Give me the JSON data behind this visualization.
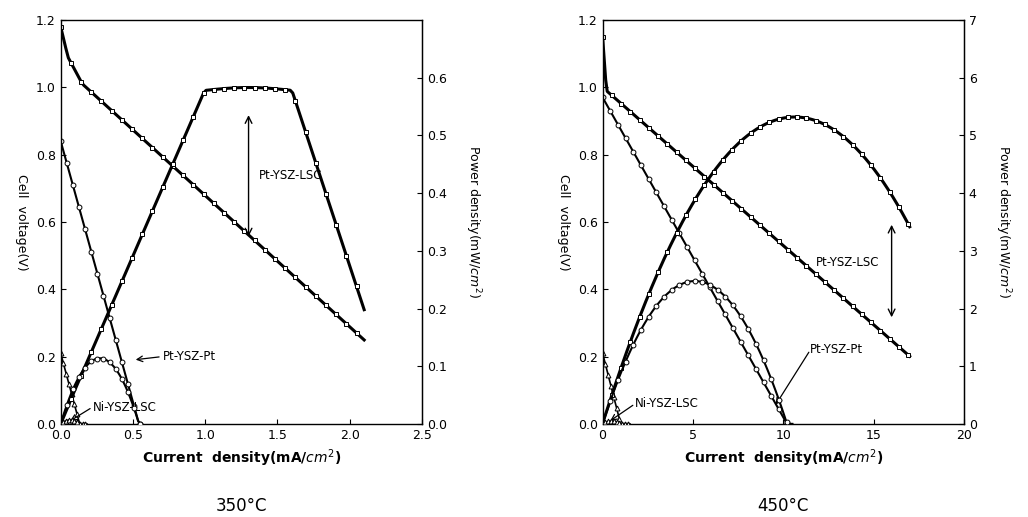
{
  "fig_width": 10.28,
  "fig_height": 5.17,
  "background_color": "#ffffff",
  "border_color": "#000000",
  "left_panel": {
    "title": "350°C",
    "xlabel": "Current  density(mA/cm²)",
    "ylabel_left": "Cell voltage(V)",
    "ylabel_right": "Power density(mW/cm²)",
    "xlim": [
      0,
      2.5
    ],
    "ylim_left": [
      0,
      1.2
    ],
    "ylim_right": [
      0,
      0.7
    ],
    "xticks": [
      0.0,
      0.5,
      1.0,
      1.5,
      2.0,
      2.5
    ],
    "yticks_left": [
      0.0,
      0.2,
      0.4,
      0.6,
      0.8,
      1.0,
      1.2
    ],
    "yticks_right": [
      0.0,
      0.1,
      0.2,
      0.3,
      0.4,
      0.5,
      0.6
    ]
  },
  "right_panel": {
    "title": "450°C",
    "xlabel": "Current  density(mA/cm²)",
    "ylabel_left": "Cell voltage(V)",
    "ylabel_right": "Power density(mW/cm²)",
    "xlim": [
      0,
      20
    ],
    "ylim_left": [
      0,
      1.2
    ],
    "ylim_right": [
      0,
      7
    ],
    "xticks": [
      0,
      5,
      10,
      15,
      20
    ],
    "yticks_left": [
      0.0,
      0.2,
      0.4,
      0.6,
      0.8,
      1.0,
      1.2
    ],
    "yticks_right": [
      0,
      1,
      2,
      3,
      4,
      5,
      6,
      7
    ]
  }
}
